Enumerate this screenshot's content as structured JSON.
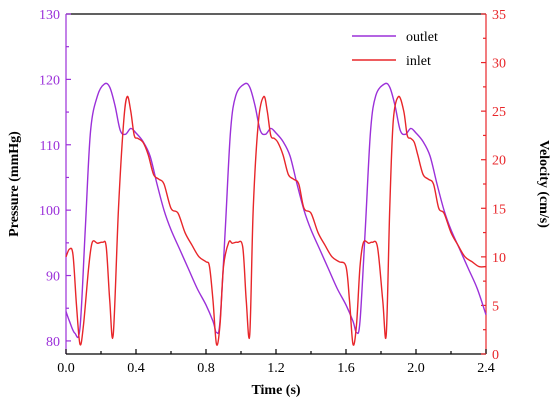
{
  "chart_data": {
    "type": "line",
    "title": "",
    "xlabel": "Time (s)",
    "ylabel_left": "Pressure (mmHg)",
    "ylabel_right": "Velocity (cm/s)",
    "xlim": [
      0,
      2.4
    ],
    "ylim_left": [
      78,
      130
    ],
    "ylim_right": [
      0,
      35
    ],
    "xticks": [
      "0.0",
      "0.4",
      "0.8",
      "1.2",
      "1.6",
      "2.0",
      "2.4"
    ],
    "yticks_left": [
      "80",
      "90",
      "100",
      "110",
      "120",
      "130"
    ],
    "yticks_right": [
      "0",
      "5",
      "10",
      "15",
      "20",
      "25",
      "30",
      "35"
    ],
    "grid": false,
    "legend_position": "top-right",
    "axis_colors": {
      "x": "#000000",
      "left": "#9b30d9",
      "right": "#e8262a"
    },
    "series": [
      {
        "name": "outlet",
        "axis": "left",
        "color": "#9b30d9",
        "x": [
          0.0,
          0.02,
          0.05,
          0.08,
          0.11,
          0.14,
          0.18,
          0.22,
          0.25,
          0.28,
          0.31,
          0.34,
          0.37,
          0.4,
          0.44,
          0.48,
          0.52,
          0.56,
          0.6,
          0.65,
          0.7,
          0.75,
          0.8,
          0.84,
          0.86,
          0.88,
          0.91,
          0.94,
          0.97,
          1.02,
          1.05,
          1.08,
          1.11,
          1.14,
          1.17,
          1.2,
          1.24,
          1.28,
          1.32,
          1.36,
          1.4,
          1.45,
          1.5,
          1.55,
          1.6,
          1.64,
          1.66,
          1.68,
          1.71,
          1.74,
          1.77,
          1.82,
          1.85,
          1.88,
          1.91,
          1.94,
          1.97,
          2.0,
          2.04,
          2.08,
          2.12,
          2.16,
          2.2,
          2.25,
          2.3,
          2.35,
          2.4
        ],
        "y": [
          84.5,
          83.0,
          81.2,
          82.0,
          97.0,
          112.0,
          117.5,
          119.3,
          118.8,
          116.0,
          112.2,
          111.6,
          112.5,
          111.8,
          110.5,
          108.3,
          104.0,
          100.0,
          97.0,
          94.0,
          91.0,
          88.0,
          85.5,
          83.0,
          81.3,
          83.0,
          97.0,
          112.0,
          117.5,
          119.3,
          118.8,
          116.0,
          112.2,
          111.6,
          112.5,
          111.8,
          110.5,
          108.3,
          104.0,
          100.0,
          97.0,
          94.0,
          91.0,
          88.0,
          85.5,
          83.0,
          81.3,
          83.0,
          97.0,
          112.0,
          117.5,
          119.3,
          118.8,
          116.0,
          112.2,
          111.6,
          112.5,
          111.8,
          110.5,
          108.3,
          104.0,
          100.0,
          97.0,
          94.0,
          91.0,
          88.0,
          84.0
        ]
      },
      {
        "name": "inlet",
        "axis": "right",
        "color": "#e8262a",
        "x": [
          0.0,
          0.02,
          0.04,
          0.06,
          0.08,
          0.1,
          0.13,
          0.15,
          0.18,
          0.21,
          0.23,
          0.25,
          0.27,
          0.3,
          0.33,
          0.35,
          0.37,
          0.39,
          0.41,
          0.44,
          0.47,
          0.5,
          0.53,
          0.56,
          0.6,
          0.64,
          0.68,
          0.72,
          0.76,
          0.8,
          0.82,
          0.84,
          0.86,
          0.88,
          0.9,
          0.93,
          0.95,
          0.98,
          1.01,
          1.03,
          1.05,
          1.07,
          1.1,
          1.13,
          1.15,
          1.17,
          1.19,
          1.21,
          1.24,
          1.27,
          1.3,
          1.33,
          1.36,
          1.4,
          1.44,
          1.48,
          1.52,
          1.56,
          1.6,
          1.62,
          1.64,
          1.66,
          1.68,
          1.7,
          1.73,
          1.75,
          1.78,
          1.81,
          1.83,
          1.85,
          1.87,
          1.9,
          1.93,
          1.95,
          1.97,
          1.99,
          2.01,
          2.04,
          2.07,
          2.1,
          2.13,
          2.16,
          2.2,
          2.24,
          2.28,
          2.32,
          2.36,
          2.4
        ],
        "y": [
          10.0,
          10.8,
          10.2,
          5.0,
          1.0,
          3.0,
          9.0,
          11.5,
          11.4,
          11.5,
          11.0,
          5.5,
          2.0,
          15.0,
          24.0,
          26.5,
          25.0,
          22.5,
          22.2,
          21.8,
          20.5,
          18.5,
          18.0,
          17.5,
          15.0,
          14.5,
          12.5,
          11.2,
          10.0,
          9.5,
          9.0,
          5.5,
          1.0,
          3.0,
          9.0,
          11.5,
          11.4,
          11.5,
          11.0,
          5.5,
          2.0,
          15.0,
          24.0,
          26.5,
          25.0,
          22.5,
          22.2,
          21.8,
          20.5,
          18.5,
          18.0,
          17.5,
          15.0,
          14.5,
          12.5,
          11.2,
          10.0,
          9.5,
          9.0,
          5.5,
          1.0,
          3.0,
          9.0,
          11.5,
          11.4,
          11.5,
          11.0,
          5.5,
          2.0,
          15.0,
          24.0,
          26.5,
          25.0,
          22.5,
          22.2,
          21.8,
          20.5,
          18.5,
          18.0,
          17.5,
          15.0,
          14.5,
          12.5,
          11.2,
          10.0,
          9.5,
          9.0,
          9.0
        ]
      }
    ]
  }
}
